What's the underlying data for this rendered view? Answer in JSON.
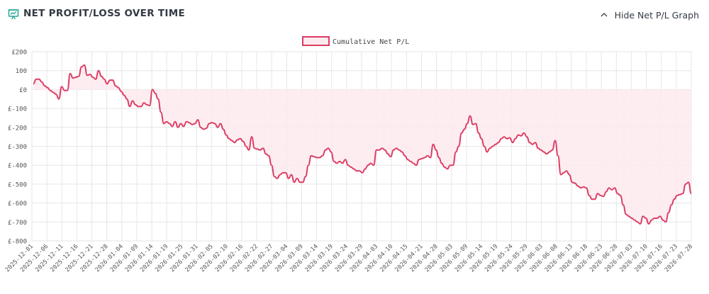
{
  "header": {
    "title": "NET PROFIT/LOSS OVER TIME",
    "title_icon": "chart-presentation-icon",
    "toggle_label": "Hide Net P/L Graph",
    "toggle_icon": "chevron-up-icon"
  },
  "colors": {
    "line": "#dc3d64",
    "fill": "#fdeaee",
    "grid": "#e6e6e6",
    "text": "#555555",
    "icon_teal": "#26a69a"
  },
  "chart_data": {
    "type": "area",
    "legend": [
      "Cumulative Net P/L"
    ],
    "legend_position": "top-center",
    "grid": true,
    "ylim": [
      -800,
      200
    ],
    "y_ticks": [
      "£200",
      "100",
      "£0",
      "£-100",
      "£-200",
      "£-300",
      "£-400",
      "£-500",
      "£-600",
      "£-700",
      "£-800"
    ],
    "x_ticks": [
      "2025-12-01",
      "2025-12-06",
      "2025-12-11",
      "2025-12-16",
      "2025-12-21",
      "2025-12-28",
      "2026-01-04",
      "2026-01-09",
      "2026-01-14",
      "2026-01-19",
      "2026-01-25",
      "2026-01-31",
      "2026-02-05",
      "2026-02-10",
      "2026-02-16",
      "2026-02-22",
      "2026-02-27",
      "2026-03-04",
      "2026-03-09",
      "2026-03-14",
      "2026-03-19",
      "2026-03-24",
      "2026-03-29",
      "2026-04-03",
      "2026-04-10",
      "2026-04-15",
      "2026-04-21",
      "2026-04-28",
      "2026-05-03",
      "2026-05-09",
      "2026-05-14",
      "2026-05-19",
      "2026-05-24",
      "2026-05-29",
      "2026-06-03",
      "2026-06-08",
      "2026-06-13",
      "2026-06-18",
      "2026-06-23",
      "2026-06-28",
      "2026-07-03",
      "2026-07-10",
      "2026-07-16",
      "2026-07-23",
      "2026-07-28"
    ],
    "series": [
      {
        "name": "Cumulative Net P/L",
        "values": [
          30,
          55,
          55,
          40,
          20,
          10,
          -5,
          -15,
          -25,
          -50,
          15,
          -5,
          -5,
          85,
          60,
          65,
          70,
          120,
          130,
          75,
          80,
          65,
          55,
          100,
          70,
          55,
          30,
          50,
          50,
          20,
          10,
          -10,
          -30,
          -50,
          -90,
          -60,
          -80,
          -90,
          -90,
          -70,
          -80,
          -85,
          0,
          -20,
          -50,
          -120,
          -180,
          -170,
          -180,
          -195,
          -170,
          -200,
          -180,
          -195,
          -170,
          -175,
          -185,
          -180,
          -160,
          -200,
          -210,
          -205,
          -180,
          -175,
          -180,
          -200,
          -180,
          -210,
          -240,
          -260,
          -270,
          -280,
          -265,
          -260,
          -275,
          -300,
          -320,
          -250,
          -310,
          -315,
          -320,
          -310,
          -340,
          -350,
          -400,
          -460,
          -470,
          -450,
          -440,
          -440,
          -470,
          -450,
          -490,
          -470,
          -490,
          -490,
          -460,
          -400,
          -350,
          -355,
          -360,
          -360,
          -350,
          -320,
          -310,
          -330,
          -380,
          -390,
          -380,
          -390,
          -370,
          -400,
          -410,
          -420,
          -430,
          -430,
          -440,
          -420,
          -400,
          -390,
          -400,
          -320,
          -320,
          -310,
          -320,
          -340,
          -355,
          -320,
          -310,
          -320,
          -330,
          -350,
          -370,
          -380,
          -390,
          -400,
          -370,
          -365,
          -360,
          -350,
          -360,
          -290,
          -320,
          -360,
          -390,
          -410,
          -420,
          -400,
          -400,
          -330,
          -300,
          -230,
          -210,
          -180,
          -140,
          -185,
          -180,
          -230,
          -260,
          -300,
          -330,
          -310,
          -300,
          -290,
          -280,
          -260,
          -250,
          -260,
          -255,
          -280,
          -260,
          -240,
          -245,
          -230,
          -250,
          -280,
          -290,
          -280,
          -310,
          -320,
          -330,
          -340,
          -330,
          -320,
          -270,
          -350,
          -450,
          -440,
          -430,
          -450,
          -490,
          -495,
          -510,
          -520,
          -515,
          -520,
          -560,
          -580,
          -580,
          -550,
          -560,
          -565,
          -540,
          -520,
          -530,
          -520,
          -550,
          -560,
          -610,
          -660,
          -670,
          -680,
          -690,
          -700,
          -710,
          -670,
          -680,
          -710,
          -690,
          -680,
          -680,
          -670,
          -690,
          -700,
          -650,
          -610,
          -580,
          -560,
          -555,
          -550,
          -500,
          -490,
          -550
        ]
      }
    ]
  }
}
